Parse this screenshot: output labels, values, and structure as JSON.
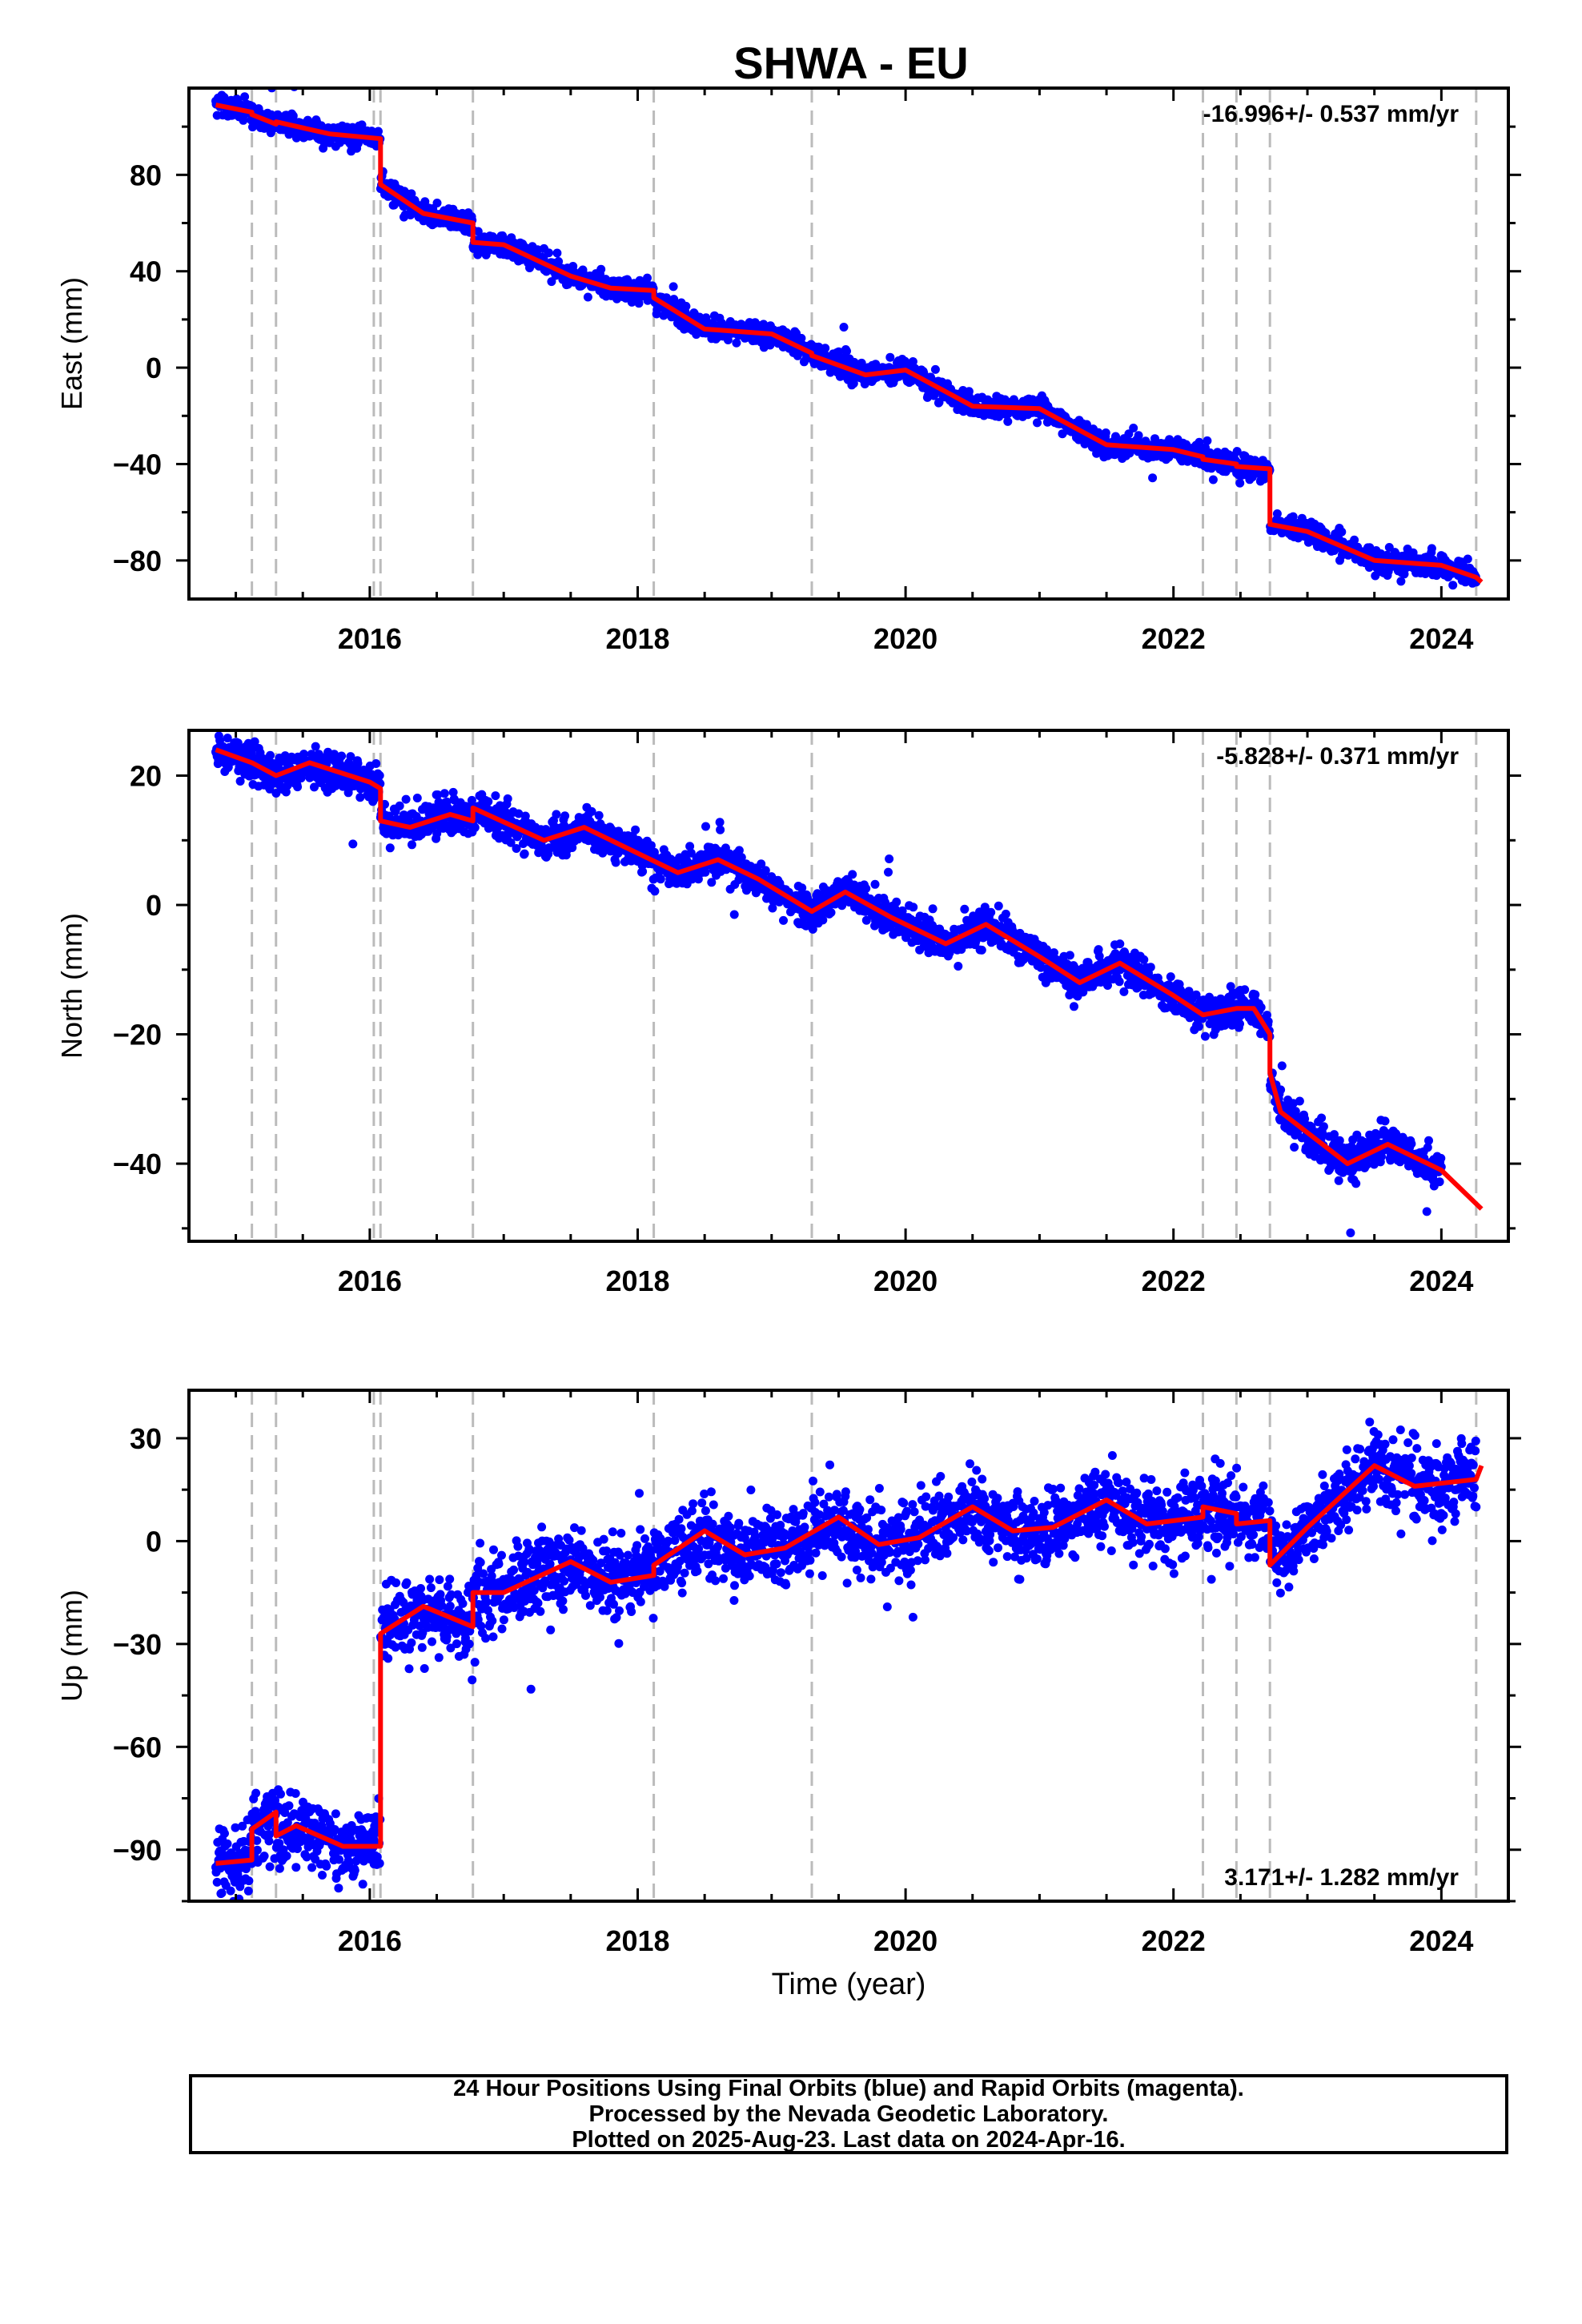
{
  "title": "SHWA - EU",
  "xlabel": "Time (year)",
  "colors": {
    "points": "#0000ff",
    "model": "#ff0000",
    "offset_lines": "#bbbbbb",
    "axes": "#000000"
  },
  "footer": {
    "line1": "24 Hour Positions Using Final Orbits (blue) and Rapid Orbits (magenta).",
    "line2": "Processed by the Nevada Geodetic Laboratory.",
    "line3": "Plotted on 2025-Aug-23. Last data on 2024-Apr-16."
  },
  "chart_data": [
    {
      "type": "scatter",
      "component": "east",
      "ylabel": "East (mm)",
      "rate_text": "-16.996+/- 0.537 mm/yr",
      "xlim": [
        2014.65,
        2024.5
      ],
      "ylim": [
        -96,
        116
      ],
      "xticks": [
        2016,
        2018,
        2020,
        2022,
        2024
      ],
      "yticks": [
        -80,
        -40,
        0,
        40,
        80
      ],
      "offset_epochs": [
        2015.12,
        2015.3,
        2016.03,
        2016.08,
        2016.77,
        2018.12,
        2019.3,
        2022.22,
        2022.47,
        2022.72,
        2024.26
      ],
      "model_x": [
        2014.85,
        2015.12,
        2015.12,
        2015.3,
        2015.3,
        2015.7,
        2016.08,
        2016.08,
        2016.4,
        2016.77,
        2016.77,
        2017.0,
        2017.5,
        2017.8,
        2018.12,
        2018.12,
        2018.5,
        2019.0,
        2019.3,
        2019.3,
        2019.7,
        2020.0,
        2020.5,
        2021.0,
        2021.5,
        2022.0,
        2022.22,
        2022.22,
        2022.47,
        2022.47,
        2022.72,
        2022.72,
        2023.0,
        2023.5,
        2024.0,
        2024.26,
        2024.3
      ],
      "model_y": [
        109,
        106,
        105,
        101,
        102,
        97,
        95,
        76,
        64,
        60,
        52,
        51,
        38,
        33,
        32,
        29,
        16,
        14,
        6,
        5,
        -3,
        -1,
        -16,
        -17,
        -32,
        -34,
        -37,
        -38,
        -40,
        -41,
        -42,
        -65,
        -68,
        -80,
        -82,
        -87,
        -89
      ],
      "points": {
        "count": 2700,
        "scatter_sd_mm": 2.2,
        "seed": 1
      }
    },
    {
      "type": "scatter",
      "component": "north",
      "ylabel": "North (mm)",
      "rate_text": "-5.828+/- 0.371 mm/yr",
      "xlim": [
        2014.65,
        2024.5
      ],
      "ylim": [
        -52,
        27
      ],
      "xticks": [
        2016,
        2018,
        2020,
        2022,
        2024
      ],
      "yticks": [
        -40,
        -20,
        0,
        20
      ],
      "offset_epochs": [
        2015.12,
        2015.3,
        2016.03,
        2016.08,
        2016.77,
        2018.12,
        2019.3,
        2022.22,
        2022.47,
        2022.72,
        2024.26
      ],
      "model_x": [
        2014.85,
        2015.12,
        2015.3,
        2015.55,
        2016.0,
        2016.08,
        2016.08,
        2016.3,
        2016.6,
        2016.77,
        2016.77,
        2017.3,
        2017.6,
        2018.0,
        2018.3,
        2018.6,
        2018.9,
        2019.3,
        2019.55,
        2019.9,
        2020.3,
        2020.6,
        2021.0,
        2021.3,
        2021.6,
        2022.0,
        2022.22,
        2022.47,
        2022.6,
        2022.72,
        2022.72,
        2022.8,
        2023.3,
        2023.6,
        2024.0,
        2024.3
      ],
      "model_y": [
        24,
        22,
        20,
        22,
        19,
        18,
        13,
        12,
        14,
        13,
        15,
        10,
        12,
        8,
        5,
        7,
        4,
        -1,
        2,
        -2,
        -6,
        -3,
        -8,
        -12,
        -9,
        -14,
        -17,
        -16,
        -16,
        -20,
        -26,
        -32,
        -40,
        -37,
        -41,
        -47
      ],
      "points": {
        "count": 2700,
        "scatter_sd_mm": 1.4,
        "seed": 2
      }
    },
    {
      "type": "scatter",
      "component": "up",
      "ylabel": "Up (mm)",
      "rate_text": "3.171+/- 1.282 mm/yr",
      "xlim": [
        2014.65,
        2024.5
      ],
      "ylim": [
        -105,
        44
      ],
      "xticks": [
        2016,
        2018,
        2020,
        2022,
        2024
      ],
      "yticks": [
        -90,
        -60,
        -30,
        0,
        30
      ],
      "offset_epochs": [
        2015.12,
        2015.3,
        2016.03,
        2016.08,
        2016.77,
        2018.12,
        2019.3,
        2022.22,
        2022.47,
        2022.72,
        2024.26
      ],
      "model_x": [
        2014.85,
        2015.12,
        2015.12,
        2015.3,
        2015.3,
        2015.45,
        2015.8,
        2016.08,
        2016.08,
        2016.4,
        2016.77,
        2016.77,
        2017.0,
        2017.5,
        2017.8,
        2018.12,
        2018.12,
        2018.5,
        2018.8,
        2019.1,
        2019.5,
        2019.8,
        2020.1,
        2020.5,
        2020.8,
        2021.1,
        2021.5,
        2021.8,
        2022.22,
        2022.22,
        2022.47,
        2022.47,
        2022.72,
        2022.72,
        2023.0,
        2023.5,
        2023.8,
        2024.26,
        2024.3
      ],
      "model_y": [
        -94,
        -93,
        -84,
        -79,
        -86,
        -83,
        -89,
        -89,
        -27,
        -19,
        -25,
        -15,
        -15,
        -6,
        -12,
        -10,
        -7,
        3,
        -4,
        -2,
        7,
        -1,
        1,
        10,
        3,
        4,
        12,
        5,
        7,
        10,
        8,
        5,
        6,
        -7,
        4,
        22,
        16,
        18,
        22
      ],
      "points": {
        "count": 2700,
        "scatter_sd_mm": 5.5,
        "seed": 3
      }
    }
  ]
}
